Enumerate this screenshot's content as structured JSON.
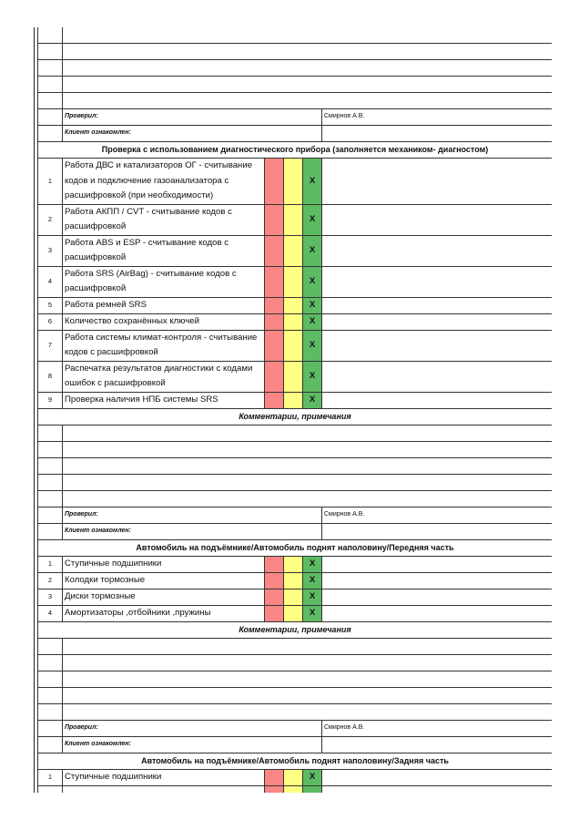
{
  "colors": {
    "bad": "#f98585",
    "warn": "#ffff84",
    "ok": "#5dbb63"
  },
  "blocks": [
    {
      "type": "blank",
      "count": 5
    },
    {
      "type": "signoff",
      "checked_label": "Проверил:",
      "checked_value": "Смирнов А.В.",
      "client_label": "Клиент ознакомлен:"
    },
    {
      "type": "section",
      "title": "Проверка с использованием диагностического прибора (заполняется механиком- диагностом)",
      "items": [
        {
          "num": "1",
          "text": "Работа ДВС и катализаторов ОГ - считывание кодов и подключение газоанализатора с расшифровкой (при необходимости)",
          "mark": "X"
        },
        {
          "num": "2",
          "text": "Работа АКПП / CVT - считывание кодов с расшифровкой",
          "mark": "X"
        },
        {
          "num": "3",
          "text": "Работа ABS и ESP - считывание кодов с расшифровкой",
          "mark": "X"
        },
        {
          "num": "4",
          "text": "Работа SRS (AirBag) - считывание кодов с расшифровкой",
          "mark": "X"
        },
        {
          "num": "5",
          "text": "Работа ремней SRS",
          "mark": "X"
        },
        {
          "num": "6",
          "text": "Количество сохранённых ключей",
          "mark": "X"
        },
        {
          "num": "7",
          "text": "Работа системы климат-контроля - считывание кодов с расшифровкой",
          "mark": "X"
        },
        {
          "num": "8",
          "text": "Распечатка результатов диагностики с кодами ошибок с расшифровкой",
          "mark": "X"
        },
        {
          "num": "9",
          "text": "Проверка наличия НПБ системы SRS",
          "mark": "X"
        }
      ]
    },
    {
      "type": "comments",
      "title": "Комментарии, примечания",
      "count": 5
    },
    {
      "type": "signoff",
      "checked_label": "Проверил:",
      "checked_value": "Смирнов А.В.",
      "client_label": "Клиент ознакомлен:"
    },
    {
      "type": "section",
      "title": "Автомобиль на подъёмнике/Автомобиль поднят наполовину/Передняя часть",
      "items": [
        {
          "num": "1",
          "text": "Ступичные подшипники",
          "mark": "X"
        },
        {
          "num": "2",
          "text": "Колодки тормозные",
          "mark": "X"
        },
        {
          "num": "3",
          "text": "Диски тормозные",
          "mark": "X"
        },
        {
          "num": "4",
          "text": "Амортизаторы ,отбойники ,пружины",
          "mark": "X"
        }
      ]
    },
    {
      "type": "comments",
      "title": "Комментарии, примечания",
      "count": 5
    },
    {
      "type": "signoff",
      "checked_label": "Проверил:",
      "checked_value": "Смирнов А.В.",
      "client_label": "Клиент ознакомлен:"
    },
    {
      "type": "section",
      "title": "Автомобиль на подъёмнике/Автомобиль поднят наполовину/Задняя часть",
      "items": [
        {
          "num": "1",
          "text": "Ступичные подшипники",
          "mark": "X"
        },
        {
          "num": "",
          "text": "",
          "mark": ""
        }
      ]
    }
  ]
}
